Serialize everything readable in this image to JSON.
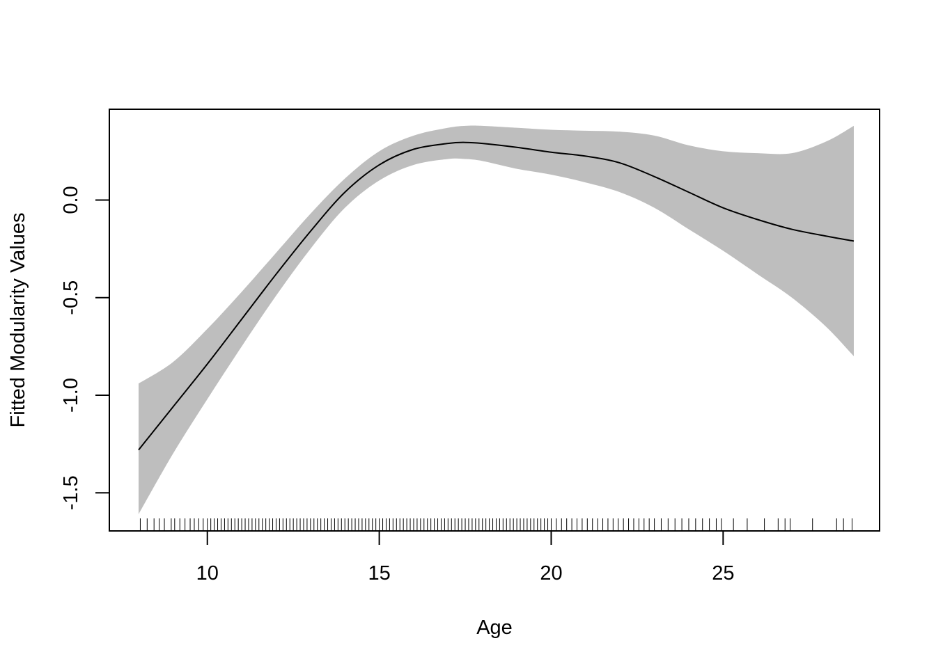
{
  "chart_data": {
    "type": "line",
    "title": "",
    "xlabel": "Age",
    "ylabel": "Fitted Modularity Values",
    "xlim": [
      7.15,
      29.55
    ],
    "ylim": [
      -1.695,
      0.465
    ],
    "x_ticks": [
      10,
      15,
      20,
      25
    ],
    "x_tick_labels": [
      "10",
      "15",
      "20",
      "25"
    ],
    "y_ticks": [
      -1.5,
      -1.0,
      -0.5,
      0.0
    ],
    "y_tick_labels": [
      "-1.5",
      "-1.0",
      "-0.5",
      "0.0"
    ],
    "grid": false,
    "legend": "none",
    "colors": {
      "line": "#000000",
      "band": "#bebebe",
      "frame": "#000000"
    },
    "series": [
      {
        "x": [
          8.0,
          9.0,
          10.0,
          11.0,
          12.0,
          13.0,
          14.0,
          15.0,
          16.0,
          17.0,
          17.5,
          18.0,
          19.0,
          20.0,
          21.0,
          22.0,
          23.0,
          24.0,
          25.0,
          26.0,
          27.0,
          28.0,
          28.8
        ],
        "y": [
          -1.28,
          -1.06,
          -0.84,
          -0.61,
          -0.38,
          -0.16,
          0.04,
          0.18,
          0.26,
          0.29,
          0.295,
          0.29,
          0.27,
          0.245,
          0.225,
          0.19,
          0.12,
          0.04,
          -0.04,
          -0.1,
          -0.15,
          -0.185,
          -0.21
        ],
        "lower": [
          -1.61,
          -1.3,
          -1.02,
          -0.75,
          -0.49,
          -0.25,
          -0.04,
          0.1,
          0.18,
          0.21,
          0.21,
          0.2,
          0.16,
          0.13,
          0.09,
          0.04,
          -0.04,
          -0.15,
          -0.26,
          -0.38,
          -0.5,
          -0.65,
          -0.8
        ],
        "upper": [
          -0.94,
          -0.83,
          -0.66,
          -0.47,
          -0.27,
          -0.07,
          0.11,
          0.25,
          0.33,
          0.37,
          0.38,
          0.38,
          0.37,
          0.36,
          0.355,
          0.35,
          0.33,
          0.28,
          0.25,
          0.24,
          0.24,
          0.3,
          0.38
        ]
      }
    ],
    "rug": [
      8.05,
      8.25,
      8.45,
      8.6,
      8.75,
      8.95,
      9.05,
      9.2,
      9.35,
      9.5,
      9.62,
      9.75,
      9.88,
      10.0,
      10.1,
      10.2,
      10.3,
      10.4,
      10.5,
      10.6,
      10.7,
      10.8,
      10.9,
      11.0,
      11.1,
      11.2,
      11.3,
      11.4,
      11.5,
      11.6,
      11.7,
      11.8,
      11.9,
      12.0,
      12.1,
      12.2,
      12.3,
      12.4,
      12.5,
      12.6,
      12.7,
      12.8,
      12.9,
      13.0,
      13.1,
      13.2,
      13.3,
      13.4,
      13.5,
      13.6,
      13.7,
      13.8,
      13.9,
      14.0,
      14.1,
      14.2,
      14.3,
      14.4,
      14.5,
      14.6,
      14.7,
      14.8,
      14.9,
      15.0,
      15.1,
      15.2,
      15.3,
      15.4,
      15.5,
      15.6,
      15.7,
      15.8,
      15.9,
      16.0,
      16.1,
      16.2,
      16.3,
      16.4,
      16.5,
      16.6,
      16.7,
      16.8,
      16.9,
      17.0,
      17.1,
      17.2,
      17.3,
      17.4,
      17.5,
      17.6,
      17.7,
      17.8,
      17.9,
      18.0,
      18.1,
      18.2,
      18.3,
      18.4,
      18.5,
      18.6,
      18.7,
      18.8,
      18.9,
      19.0,
      19.1,
      19.2,
      19.3,
      19.4,
      19.5,
      19.6,
      19.7,
      19.8,
      19.9,
      20.0,
      20.15,
      20.3,
      20.45,
      20.6,
      20.75,
      20.9,
      21.05,
      21.2,
      21.35,
      21.5,
      21.65,
      21.8,
      21.95,
      22.1,
      22.25,
      22.4,
      22.55,
      22.7,
      22.85,
      23.0,
      23.2,
      23.4,
      23.6,
      23.8,
      24.0,
      24.2,
      24.4,
      24.6,
      24.8,
      24.95,
      25.3,
      25.7,
      26.2,
      26.6,
      26.8,
      26.95,
      27.6,
      28.3,
      28.5,
      28.75
    ]
  }
}
